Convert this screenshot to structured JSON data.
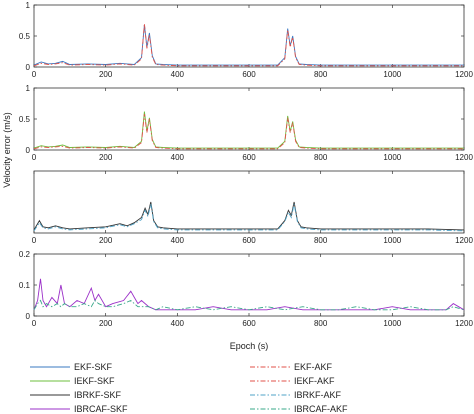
{
  "chart_data": {
    "type": "line",
    "xlabel": "Epoch (s)",
    "ylabel": "Velocity error (m/s)",
    "xlim": [
      0,
      1200
    ],
    "xticks": [
      "0",
      "200",
      "400",
      "600",
      "800",
      "1000",
      "1200"
    ],
    "grid": false,
    "legend_placement": "bottom",
    "legend": [
      {
        "label": "EKF-SKF",
        "color": "#3a78c2",
        "dash": "solid"
      },
      {
        "label": "IEKF-SKF",
        "color": "#6cbf3c",
        "dash": "solid"
      },
      {
        "label": "IBRKF-SKF",
        "color": "#333333",
        "dash": "solid"
      },
      {
        "label": "IBRCAF-SKF",
        "color": "#9b30c8",
        "dash": "solid"
      },
      {
        "label": "EKF-AKF",
        "color": "#e0524a",
        "dash": "dashdot"
      },
      {
        "label": "IEKF-AKF",
        "color": "#e0524a",
        "dash": "dashdot"
      },
      {
        "label": "IBRKF-AKF",
        "color": "#4fa3c7",
        "dash": "dashdot"
      },
      {
        "label": "IBRCAF-AKF",
        "color": "#3aa88a",
        "dash": "dashdot"
      }
    ],
    "panels": [
      {
        "ylim": [
          0,
          1
        ],
        "yticks": [
          "0",
          "0.5",
          "1"
        ],
        "series": [
          {
            "name": "EKF-SKF",
            "color": "#3a78c2",
            "dash": "solid",
            "x": [
              0,
              20,
              40,
              60,
              80,
              100,
              150,
              200,
              240,
              260,
              280,
              300,
              308,
              315,
              322,
              330,
              340,
              360,
              400,
              500,
              600,
              680,
              700,
              708,
              715,
              722,
              730,
              740,
              760,
              800,
              900,
              1000,
              1100,
              1200
            ],
            "y": [
              0.03,
              0.08,
              0.05,
              0.06,
              0.09,
              0.04,
              0.05,
              0.04,
              0.06,
              0.05,
              0.04,
              0.15,
              0.68,
              0.32,
              0.55,
              0.18,
              0.05,
              0.04,
              0.03,
              0.03,
              0.03,
              0.03,
              0.15,
              0.62,
              0.34,
              0.5,
              0.17,
              0.05,
              0.04,
              0.03,
              0.03,
              0.03,
              0.03,
              0.03
            ]
          },
          {
            "name": "EKF-AKF",
            "color": "#e0524a",
            "dash": "dashdot",
            "x": [
              0,
              20,
              40,
              60,
              80,
              100,
              150,
              200,
              240,
              260,
              280,
              300,
              308,
              315,
              322,
              330,
              340,
              360,
              400,
              500,
              600,
              680,
              700,
              708,
              715,
              722,
              730,
              740,
              760,
              800,
              900,
              1000,
              1100,
              1200
            ],
            "y": [
              0.02,
              0.06,
              0.04,
              0.05,
              0.07,
              0.03,
              0.04,
              0.03,
              0.05,
              0.04,
              0.03,
              0.13,
              0.7,
              0.3,
              0.52,
              0.16,
              0.04,
              0.03,
              0.02,
              0.02,
              0.02,
              0.02,
              0.13,
              0.6,
              0.32,
              0.48,
              0.15,
              0.04,
              0.03,
              0.02,
              0.02,
              0.02,
              0.02,
              0.02
            ]
          }
        ]
      },
      {
        "ylim": [
          0,
          1
        ],
        "yticks": [
          "0",
          "0.5",
          "1"
        ],
        "series": [
          {
            "name": "IEKF-SKF",
            "color": "#6cbf3c",
            "dash": "solid",
            "x": [
              0,
              20,
              40,
              60,
              80,
              100,
              150,
              200,
              240,
              260,
              280,
              300,
              308,
              315,
              322,
              330,
              340,
              360,
              400,
              500,
              600,
              680,
              700,
              708,
              715,
              722,
              730,
              740,
              760,
              800,
              900,
              1000,
              1100,
              1200
            ],
            "y": [
              0.03,
              0.07,
              0.05,
              0.06,
              0.08,
              0.04,
              0.05,
              0.04,
              0.06,
              0.05,
              0.04,
              0.14,
              0.62,
              0.3,
              0.52,
              0.17,
              0.05,
              0.04,
              0.03,
              0.03,
              0.03,
              0.03,
              0.14,
              0.55,
              0.3,
              0.46,
              0.16,
              0.05,
              0.04,
              0.03,
              0.03,
              0.03,
              0.03,
              0.03
            ]
          },
          {
            "name": "IEKF-AKF",
            "color": "#e0524a",
            "dash": "dashdot",
            "x": [
              0,
              20,
              40,
              60,
              80,
              100,
              150,
              200,
              240,
              260,
              280,
              300,
              308,
              315,
              322,
              330,
              340,
              360,
              400,
              500,
              600,
              680,
              700,
              708,
              715,
              722,
              730,
              740,
              760,
              800,
              900,
              1000,
              1100,
              1200
            ],
            "y": [
              0.02,
              0.05,
              0.04,
              0.05,
              0.06,
              0.03,
              0.04,
              0.03,
              0.05,
              0.04,
              0.03,
              0.12,
              0.58,
              0.28,
              0.5,
              0.15,
              0.04,
              0.03,
              0.02,
              0.02,
              0.02,
              0.02,
              0.12,
              0.52,
              0.28,
              0.44,
              0.14,
              0.04,
              0.03,
              0.02,
              0.02,
              0.02,
              0.02,
              0.02
            ]
          }
        ]
      },
      {
        "ylim": [
          0,
          0.6
        ],
        "yticks": [],
        "series": [
          {
            "name": "IBRKF-SKF",
            "color": "#333333",
            "dash": "solid",
            "x": [
              0,
              15,
              25,
              40,
              60,
              80,
              100,
              150,
              200,
              240,
              260,
              280,
              300,
              310,
              318,
              326,
              334,
              345,
              360,
              400,
              500,
              600,
              680,
              700,
              710,
              718,
              726,
              735,
              745,
              760,
              800,
              900,
              1000,
              1100,
              1200
            ],
            "y": [
              0.03,
              0.12,
              0.06,
              0.05,
              0.07,
              0.05,
              0.04,
              0.05,
              0.06,
              0.09,
              0.07,
              0.1,
              0.15,
              0.24,
              0.18,
              0.3,
              0.12,
              0.06,
              0.05,
              0.04,
              0.04,
              0.04,
              0.04,
              0.12,
              0.22,
              0.17,
              0.3,
              0.12,
              0.06,
              0.05,
              0.04,
              0.04,
              0.04,
              0.04,
              0.03
            ]
          },
          {
            "name": "IBRKF-AKF",
            "color": "#4fa3c7",
            "dash": "dashdot",
            "x": [
              0,
              15,
              25,
              40,
              60,
              80,
              100,
              150,
              200,
              240,
              260,
              280,
              300,
              310,
              318,
              326,
              334,
              345,
              360,
              400,
              500,
              600,
              680,
              700,
              710,
              718,
              726,
              735,
              745,
              760,
              800,
              900,
              1000,
              1100,
              1200
            ],
            "y": [
              0.02,
              0.1,
              0.05,
              0.04,
              0.06,
              0.04,
              0.03,
              0.04,
              0.05,
              0.08,
              0.06,
              0.09,
              0.13,
              0.22,
              0.16,
              0.28,
              0.11,
              0.05,
              0.04,
              0.03,
              0.03,
              0.03,
              0.03,
              0.11,
              0.2,
              0.15,
              0.28,
              0.11,
              0.05,
              0.04,
              0.03,
              0.03,
              0.03,
              0.03,
              0.02
            ]
          }
        ]
      },
      {
        "ylim": [
          0,
          0.2
        ],
        "yticks": [
          "0",
          "0.1",
          "0.2"
        ],
        "series": [
          {
            "name": "IBRCAF-SKF",
            "color": "#9b30c8",
            "dash": "solid",
            "x": [
              0,
              10,
              18,
              25,
              35,
              50,
              65,
              75,
              85,
              100,
              120,
              140,
              160,
              170,
              180,
              200,
              220,
              250,
              270,
              280,
              290,
              300,
              320,
              340,
              360,
              400,
              450,
              500,
              550,
              600,
              650,
              700,
              750,
              800,
              850,
              900,
              950,
              1000,
              1050,
              1100,
              1150,
              1170,
              1200
            ],
            "y": [
              0.02,
              0.05,
              0.12,
              0.05,
              0.03,
              0.06,
              0.04,
              0.1,
              0.04,
              0.03,
              0.05,
              0.04,
              0.09,
              0.05,
              0.07,
              0.03,
              0.04,
              0.05,
              0.08,
              0.06,
              0.04,
              0.05,
              0.03,
              0.02,
              0.02,
              0.02,
              0.02,
              0.03,
              0.02,
              0.02,
              0.02,
              0.03,
              0.02,
              0.02,
              0.02,
              0.02,
              0.02,
              0.03,
              0.02,
              0.02,
              0.02,
              0.04,
              0.02
            ]
          },
          {
            "name": "IBRCAF-AKF",
            "color": "#3aa88a",
            "dash": "dashdot",
            "x": [
              0,
              10,
              18,
              25,
              35,
              50,
              65,
              75,
              85,
              100,
              120,
              140,
              160,
              170,
              180,
              200,
              220,
              250,
              270,
              280,
              290,
              300,
              320,
              340,
              360,
              400,
              450,
              500,
              550,
              600,
              650,
              700,
              750,
              800,
              850,
              900,
              950,
              1000,
              1050,
              1100,
              1150,
              1170,
              1200
            ],
            "y": [
              0.02,
              0.04,
              0.05,
              0.03,
              0.04,
              0.03,
              0.04,
              0.03,
              0.04,
              0.03,
              0.03,
              0.04,
              0.03,
              0.05,
              0.04,
              0.03,
              0.03,
              0.04,
              0.05,
              0.04,
              0.03,
              0.03,
              0.03,
              0.02,
              0.03,
              0.02,
              0.03,
              0.02,
              0.03,
              0.02,
              0.03,
              0.02,
              0.03,
              0.02,
              0.02,
              0.03,
              0.02,
              0.02,
              0.03,
              0.02,
              0.02,
              0.03,
              0.02
            ]
          }
        ]
      }
    ]
  }
}
